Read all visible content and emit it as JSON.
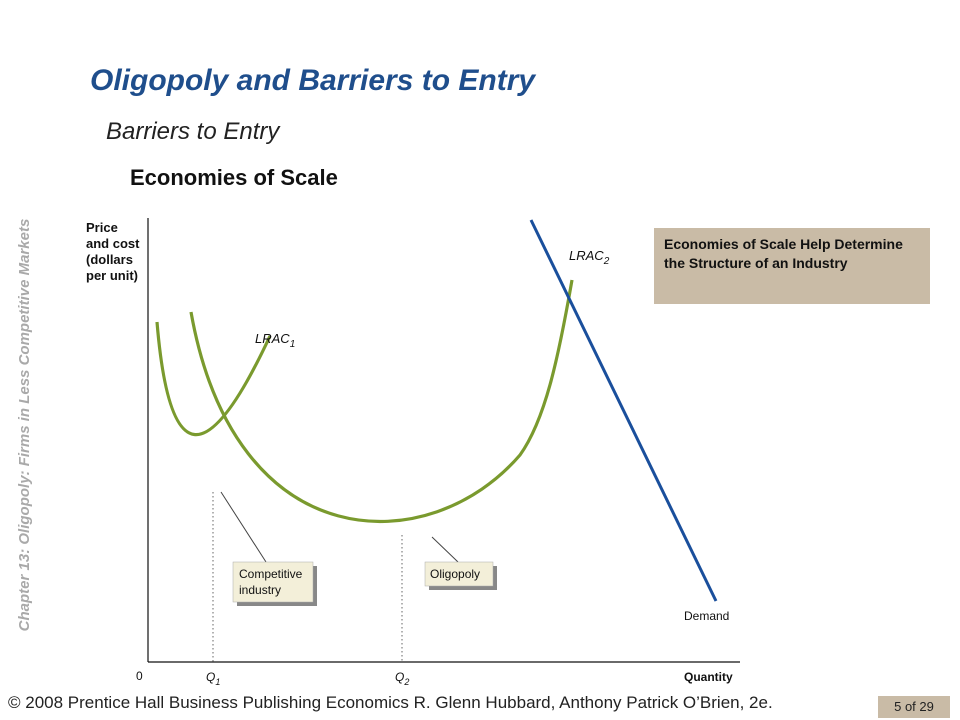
{
  "slide": {
    "title": "Oligopoly and Barriers to Entry",
    "subtitle": "Barriers to Entry",
    "subsubtitle": "Economies of Scale",
    "sidebar": "Chapter 13:  Oligopoly: Firms in Less Competitive Markets",
    "note": "Economies of Scale Help Determine the Structure of an Industry",
    "footer": "© 2008 Prentice Hall Business Publishing   Economics  R. Glenn Hubbard, Anthony Patrick O’Brien, 2e.",
    "page": "5 of 29"
  },
  "figure": {
    "ylabel_lines": [
      "Price",
      "and cost",
      "(dollars",
      "per unit)"
    ],
    "xlabel": "Quantity",
    "origin": "0",
    "curve1": {
      "label": "LRAC",
      "sub": "1"
    },
    "curve2": {
      "label": "LRAC",
      "sub": "2"
    },
    "demand_label": "Demand",
    "q1": {
      "label": "Q",
      "sub": "1"
    },
    "q2": {
      "label": "Q",
      "sub": "2"
    },
    "callout1_lines": [
      "Competitive",
      "industry"
    ],
    "callout2": "Oligopoly",
    "colors": {
      "curve": "#7a9a2e",
      "demand": "#1a4f9c",
      "callout": "#f3efd9"
    }
  }
}
